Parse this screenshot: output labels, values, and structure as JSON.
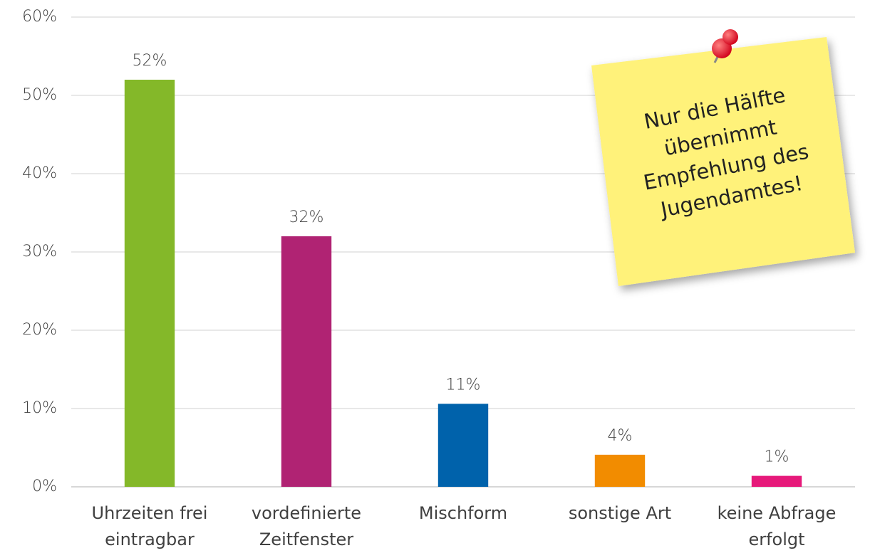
{
  "chart_data": {
    "type": "bar",
    "categories": [
      "Uhrzeiten frei\neintragbar",
      "vordefinierte\nZeitfenster",
      "Mischform",
      "sonstige Art",
      "keine Abfrage\nerfolgt"
    ],
    "values": [
      52,
      32,
      10.6,
      4.1,
      1.4
    ],
    "value_labels": [
      "52%",
      "32%",
      "11%",
      "4%",
      "1%"
    ],
    "colors": [
      "#84b829",
      "#b02373",
      "#0062ab",
      "#f28c00",
      "#e6197a"
    ],
    "ylim": [
      0,
      60
    ],
    "yticks": [
      {
        "value": 0,
        "label": "0%"
      },
      {
        "value": 10,
        "label": "10%"
      },
      {
        "value": 20,
        "label": "20%"
      },
      {
        "value": 30,
        "label": "30%"
      },
      {
        "value": 40,
        "label": "40%"
      },
      {
        "value": 50,
        "label": "50%"
      },
      {
        "value": 60,
        "label": "60%"
      }
    ],
    "grid": true,
    "annotation": "Nur die Hälfte\nübernimmt\nEmpfehlung des\nJugendamtes!"
  }
}
